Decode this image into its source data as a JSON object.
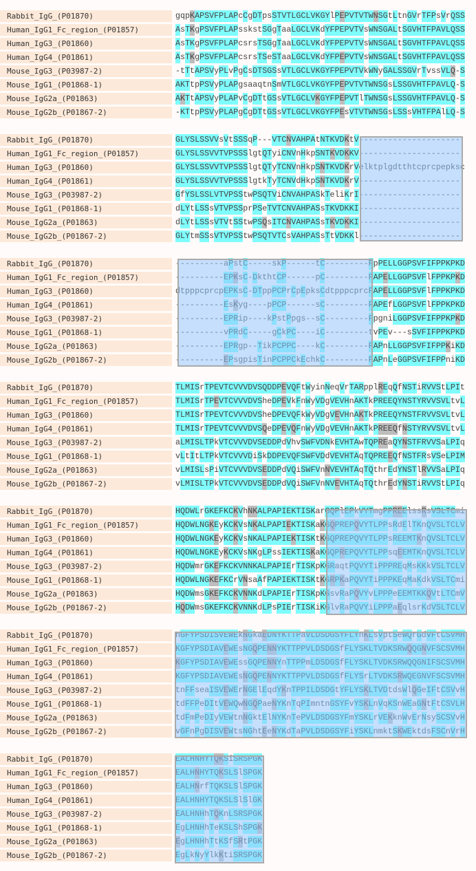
{
  "names": [
    "Rabbit_IgG_(P01870)",
    "Human_IgG1_Fc_region_(P01857)",
    "Human_IgG3_(P01860)",
    "Human_IgG4_(P01861)",
    "Mouse_IgG3_(P03987-2)",
    "Mouse_IgG1_(P01868-1)",
    "Mouse_IgG2a_(P01863)",
    "Mouse_IgG2b_(P01867-2)"
  ],
  "blocks": [
    {
      "rows": [
        "gqpKAPSVFPLAPcCgDTpsSTVTLGCLVKGYlPEPVTVTWNSGtLtnGVrTFPsVrQSS",
        "AsTKgPSVFPLAPsskstSGgTaaLGCLVKdYFPEPVTVsWNSGALtSGVHTFPAVLQSS",
        "AsTKgPSVFPLAPcsrsTSGgTaaLGCLVKdYFPEPVTVsWNSGALtSGVHTFPAVLQSS",
        "AsTKgPSVFPLAPcsrsTSeSTaaLGCLVKdYFPEPVTVsWNSGALtSGVHTFPAVLQSS",
        "-tTtAPSVyPLvPgCsDTSGSsVTLGCLVKGYFPEPVTVkWNyGALSSGVrTvssVLQ-S",
        "AKTtpPSVyPLAPgsaaqtnSmVTLGCLVKGYFPEPVTVTWNSGsLSSGVHTFPAVLQ-S",
        "AKTtAPSVyPLAPvCgDTtGSsVTLGCLVKGYFPEPVTlTWNSGsLSSGVHTFPAVLQ-S",
        "-KTtpPSVyPLAPgCgDTtGSsVTLGCLVKGYFPEsVTVTWNSGsLSSsVHTFPAlLQ-S"
      ]
    },
    {
      "rows": [
        "GLYSLSSVVsVtSSSqP---VTCNVAHPAtNTKVDKtV---------------------",
        "GLYSLSSVVTVPSSSlgtQTyiCNVnHkpSNTKVDKKV---------------------",
        "GLYSLSSVVTVPSSSlgtQTyTCNVnHkpSNTKVDKrVelktplgdtthtcprcpepksc",
        "GLYSLSSVVTVPSSSlgtkTyTCNVdHkpSNTKVDKrV---------------------",
        "GfYSLSSLVTVPSStwPSQTViCNVAHPASkTeliKrI---------------------",
        "dLYtLSSsVTVPSSprPSeTVTCNVAHPASsTKVDKKI---------------------",
        "dLYtLSSsVTVtSStwPSQsITCNVAHPASsTKVDKKI---------------------",
        "GLYtmSSsVTVPSStwPSQTVTCsVAHPASsTtVDKKl---------------------"
      ]
    },
    {
      "rows": [
        "----------aPstC-----skP------tC---------PpPELLGGPSVFIFPPKPKD",
        "----------EPKsC-DkthtCP------pC---------PAPELLGGPSVFlFPPKPKD",
        "dtpppcprcpEPKsC-DTppPCPrCpEpksCdtpppcprcPAPELLGGPSVFlFPPKPKD",
        "----------EsKyg----pPCP------sC---------PAPEfLGGPSVFlFPPKPKD",
        "----------EPRip----kPstPpgs--sC---------PpgniLGGPSVFIFPPKPKD",
        "----------vPRdC-----gCkPC----iC---------tvPEv---sSVFIFPPKPKD",
        "----------EPRgp--TikPCPPC----kC---------PAPnLLGGPSVFIFPPKiKD",
        "----------EPsgpisTinPCPPCkEchkC---------PAPnLeGGPSVFIFPPniKD"
      ]
    },
    {
      "rows": [
        "TLMISrTPEVTCVVVDVSQDDPEVQFtWyinNeqVrTARpplREqQfNSTiRVVStLPIt",
        "TLMISrTPEVTCVVVDVSheDPEVkFnWyVDgVEVHnAKTkPREEQYNSTYRVVSVLtvL",
        "TLMISrTPEVTCVVVDVSheDPEVQFkWyVDgVEVHnAKTkPREEQYNSTFRVVSVLtvL",
        "TLMISrTPEVTCVVVDVSQeDPEVQFnWyVDgVEVHnAKTkPREEQfNSTYRVVSVLtvL",
        "aLMISLTPkVTCVVVDVSEDDPdVhvSWFVDNkEVHTAwTQPREaQYNSTFRVVSaLPIq",
        "vLtItLTPkVTCVVVDiSkDDPEVQFSWFVDdVEVHTAqTQPREEQfNSTFRsVSeLPIM",
        "vLMISLsPiVTCVVVDVSEDDPdVQiSWFVnNVEVHTAqTQthrEdYNSTlRVVSaLPIq",
        "vLMISLTPkVTCVVVDVSEDDPdVQiSWFVnNVEVHTAqTQthrEdYNSTiRVVStLPIq"
      ]
    },
    {
      "rows": [
        "HQDWLrGKEFKCKVhNKALPAPIEKTISKarGQPlEPkVYTmgPPREElssRsVSLTCmi",
        "HQDWLNGKEyKCKVsNKALPAPIEKTISKaKGQPREPQVYTLPPsRdElTKnQVSLTCLV",
        "HQDWLNGKEyKCKVsNKALPAPIEKTISKtKGQPREPQVYTLPPsREEMTKnQVSLTCLV",
        "HQDWLNGKEyKCKVsNKgLPssIEKTISKaKGQPREPQVYTLPPsqEEMTKnQVSLTCLV",
        "HQDWmrGKEFKCKVNNKALPAPIErTISKpKGRaqtPQVYTiPPPREqMsKKkVSLTCLV",
        "HQDWLNGKEFKCrVNsaAfPAPIEKTISKtKGRPKaPQVYTiPPPKEqMaKdkVSLTCmi",
        "HQDWmsGKEFKCKVNNKdLPAPIErTISKpKGsvRaPQVYvLPPPeEEMTKKQVtLTCmV",
        "HQDWmsGKEFKCKVNNKdLPsPIErTISKiKGlvRaPQVYiLPPPaEqlsrKdVSLTCLV"
      ]
    },
    {
      "rows": [
        "nGFYPSDISVEWEkNGkaEDNYKTTPaVLDSDGSYFLYnKLsVptSeWQrGdVFtCSVMH",
        "KGFYPSDIAVEWEsNGQPENNYKTTPPVLDSDGSfFLYSKLTVDKSRWQQGNVFSCSVMH",
        "KGFYPSDIAVEWEssGQPENNYnTTPPmLDSDGSfFLYSKLTVDKSRWQQGNIFSCSVMH",
        "KGFYPSDIAVEWEsNGQPENNYKTTPPVLDSDGSfFLYSrLTVDKSRWQEGNVFSCSVMH",
        "tnFFseaISVEWErNGElEqdYKnTPPILDSDGtYFLYSKLTVDtdsWlQGeIFtCSVvH",
        "tdFFPeDItVEWQwNGQPaeNYKnTqPImntnGSYFvYSKLnVqKSnWEaGNtFtCSVLH",
        "tdFmPeDIyVEWtnNGktElNYKnTePVLDSDGSYFmYSKLrVEKknWvErNsySCSVvH",
        "vGFnPgDISVEWtsNGhtEeNYKdTaPVLDSDGSYFiYSKLnmktSKWEktdsFSCnVrH"
      ]
    },
    {
      "rows": [
        "EALHNHYTQKSiSRSPGK",
        "EALHNHYTQKSLSlSPGK",
        "EALHNrfTQKSLSlSPGK",
        "EALHNHYTQKSLSlSlGK",
        "EALHNHhTQKnLSRSPGK",
        "EgLHNHhTeKSLShSPGK",
        "EgLHNHhTtKSfSRtPGK",
        "EgLkNyYlkKtiSRSPGK"
      ]
    }
  ],
  "colors": {
    "identical": "#7ffcfc",
    "similar": "#bdbdbd",
    "name_bg": "#fde9d9",
    "selection": "#96c8ff"
  }
}
